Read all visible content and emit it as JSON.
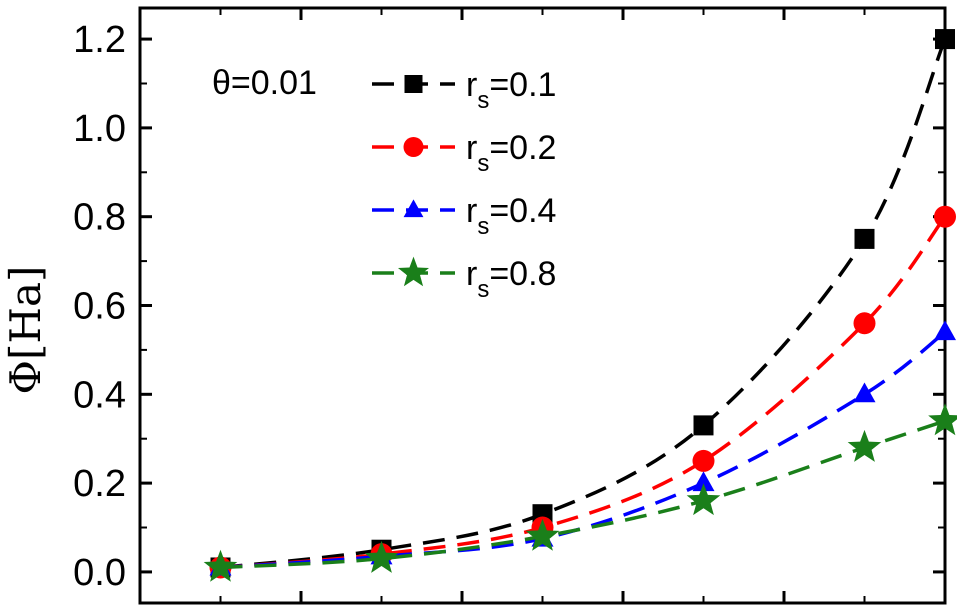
{
  "chart_data": {
    "type": "line",
    "ylabel": "Φ[Ha]",
    "xlabel": "",
    "ylim": [
      -0.07,
      1.27
    ],
    "yticks": [
      0.0,
      0.2,
      0.4,
      0.6,
      0.8,
      1.0,
      1.2
    ],
    "ytick_labels": [
      "0.0",
      "0.2",
      "0.4",
      "0.6",
      "0.8",
      "1.0",
      "1.2"
    ],
    "xlim": [
      0,
      1
    ],
    "x": [
      0.1,
      0.3,
      0.5,
      0.7,
      0.9,
      1.0
    ],
    "legend_title": "θ=0.01",
    "legend_position": "top-left",
    "grid": false,
    "series": [
      {
        "name": "rs=0.1",
        "label_main": "r",
        "label_sub": "s",
        "label_tail": "=0.1",
        "color": "#000000",
        "marker": "square",
        "values": [
          0.01,
          0.05,
          0.13,
          0.33,
          0.75,
          1.2
        ]
      },
      {
        "name": "rs=0.2",
        "label_main": "r",
        "label_sub": "s",
        "label_tail": "=0.2",
        "color": "#ff0000",
        "marker": "circle",
        "values": [
          0.01,
          0.04,
          0.1,
          0.25,
          0.56,
          0.8
        ]
      },
      {
        "name": "rs=0.4",
        "label_main": "r",
        "label_sub": "s",
        "label_tail": "=0.4",
        "color": "#0000ff",
        "marker": "triangle",
        "values": [
          0.01,
          0.035,
          0.075,
          0.2,
          0.4,
          0.54
        ]
      },
      {
        "name": "rs=0.8",
        "label_main": "r",
        "label_sub": "s",
        "label_tail": "=0.8",
        "color": "#1a7f1a",
        "marker": "star",
        "values": [
          0.01,
          0.03,
          0.08,
          0.16,
          0.28,
          0.34
        ]
      }
    ]
  }
}
